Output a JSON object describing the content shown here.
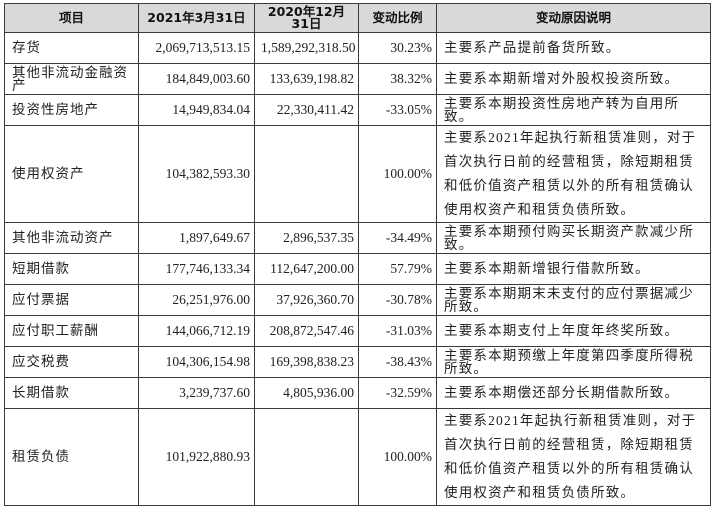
{
  "table": {
    "headers": {
      "item": "项目",
      "date_current": "2021年3月31日",
      "date_prior": "2020年12月31日",
      "change_ratio": "变动比例",
      "reason": "变动原因说明"
    },
    "rows": [
      {
        "item": "存货",
        "current": "2,069,713,513.15",
        "prior": "1,589,292,318.50",
        "ratio": "30.23%",
        "reason": "主要系产品提前备货所致。"
      },
      {
        "item": "其他非流动金融资产",
        "current": "184,849,003.60",
        "prior": "133,639,198.82",
        "ratio": "38.32%",
        "reason": "主要系本期新增对外股权投资所致。"
      },
      {
        "item": "投资性房地产",
        "current": "14,949,834.04",
        "prior": "22,330,411.42",
        "ratio": "-33.05%",
        "reason": "主要系本期投资性房地产转为自用所致。"
      },
      {
        "item": "使用权资产",
        "current": "104,382,593.30",
        "prior": "",
        "ratio": "100.00%",
        "reason": "主要系2021年起执行新租赁准则，对于首次执行日前的经营租赁，除短期租赁和低价值资产租赁以外的所有租赁确认使用权资产和租赁负债所致。"
      },
      {
        "item": "其他非流动资产",
        "current": "1,897,649.67",
        "prior": "2,896,537.35",
        "ratio": "-34.49%",
        "reason": "主要系本期预付购买长期资产款减少所致。"
      },
      {
        "item": "短期借款",
        "current": "177,746,133.34",
        "prior": "112,647,200.00",
        "ratio": "57.79%",
        "reason": "主要系本期新增银行借款所致。"
      },
      {
        "item": "应付票据",
        "current": "26,251,976.00",
        "prior": "37,926,360.70",
        "ratio": "-30.78%",
        "reason": "主要系本期期末未支付的应付票据减少所致。"
      },
      {
        "item": "应付职工薪酬",
        "current": "144,066,712.19",
        "prior": "208,872,547.46",
        "ratio": "-31.03%",
        "reason": "主要系本期支付上年度年终奖所致。"
      },
      {
        "item": "应交税费",
        "current": "104,306,154.98",
        "prior": "169,398,838.23",
        "ratio": "-38.43%",
        "reason": "主要系本期预缴上年度第四季度所得税所致。"
      },
      {
        "item": "长期借款",
        "current": "3,239,737.60",
        "prior": "4,805,936.00",
        "ratio": "-32.59%",
        "reason": "主要系本期偿还部分长期借款所致。"
      },
      {
        "item": "租赁负债",
        "current": "101,922,880.93",
        "prior": "",
        "ratio": "100.00%",
        "reason": "主要系2021年起执行新租赁准则，对于首次执行日前的经营租赁，除短期租赁和低价值资产租赁以外的所有租赁确认使用权资产和租赁负债所致。"
      }
    ]
  },
  "colors": {
    "header_bg": "#d9d9d9",
    "border": "#3a3a3a",
    "text": "#222222"
  }
}
